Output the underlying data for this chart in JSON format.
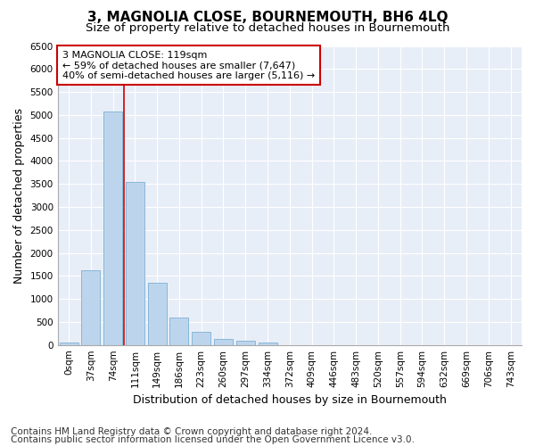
{
  "title": "3, MAGNOLIA CLOSE, BOURNEMOUTH, BH6 4LQ",
  "subtitle": "Size of property relative to detached houses in Bournemouth",
  "xlabel": "Distribution of detached houses by size in Bournemouth",
  "ylabel": "Number of detached properties",
  "footer_line1": "Contains HM Land Registry data © Crown copyright and database right 2024.",
  "footer_line2": "Contains public sector information licensed under the Open Government Licence v3.0.",
  "bar_labels": [
    "0sqm",
    "37sqm",
    "74sqm",
    "111sqm",
    "149sqm",
    "186sqm",
    "223sqm",
    "260sqm",
    "297sqm",
    "334sqm",
    "372sqm",
    "409sqm",
    "446sqm",
    "483sqm",
    "520sqm",
    "557sqm",
    "594sqm",
    "632sqm",
    "669sqm",
    "706sqm",
    "743sqm"
  ],
  "bar_values": [
    50,
    1620,
    5080,
    3540,
    1360,
    590,
    275,
    130,
    85,
    50,
    0,
    0,
    0,
    0,
    0,
    0,
    0,
    0,
    0,
    0,
    0
  ],
  "bar_color": "#bdd5ec",
  "bar_edge_color": "#7bafd4",
  "ylim": [
    0,
    6500
  ],
  "yticks": [
    0,
    500,
    1000,
    1500,
    2000,
    2500,
    3000,
    3500,
    4000,
    4500,
    5000,
    5500,
    6000,
    6500
  ],
  "vline_after_bar": 2,
  "vline_color": "#cc0000",
  "annotation_text": "3 MAGNOLIA CLOSE: 119sqm\n← 59% of detached houses are smaller (7,647)\n40% of semi-detached houses are larger (5,116) →",
  "annotation_box_color": "#ffffff",
  "annotation_box_edge": "#cc0000",
  "plot_bg_color": "#e8eef7",
  "title_fontsize": 11,
  "subtitle_fontsize": 9.5,
  "axis_label_fontsize": 9,
  "tick_fontsize": 7.5,
  "annotation_fontsize": 8,
  "footer_fontsize": 7.5
}
